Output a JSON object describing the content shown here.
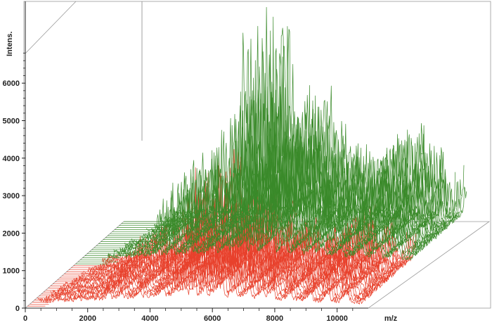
{
  "chart_data": {
    "type": "line",
    "chart_style": "3d-stacked-spectra",
    "xlabel": "m/z",
    "ylabel": "Intens.",
    "xlim": [
      0,
      11000
    ],
    "ylim": [
      0,
      6900
    ],
    "x_ticks": [
      0,
      2000,
      4000,
      6000,
      8000,
      10000
    ],
    "y_ticks": [
      0,
      1000,
      2000,
      3000,
      4000,
      5000,
      6000
    ],
    "grid": false,
    "legend": "none",
    "groups": [
      {
        "color": "#e8412c",
        "spectra": 22
      },
      {
        "color": "#3a8a2a",
        "spectra": 22
      }
    ],
    "peaks": [
      {
        "mz": 2650,
        "height": 1500
      },
      {
        "mz": 3050,
        "height": 1900
      },
      {
        "mz": 3650,
        "height": 1400
      },
      {
        "mz": 4380,
        "height": 3600
      },
      {
        "mz": 4800,
        "height": 2000
      },
      {
        "mz": 5080,
        "height": 4300
      },
      {
        "mz": 5380,
        "height": 6150
      },
      {
        "mz": 5700,
        "height": 2500
      },
      {
        "mz": 6050,
        "height": 3900
      },
      {
        "mz": 6280,
        "height": 3000
      },
      {
        "mz": 6650,
        "height": 3400
      },
      {
        "mz": 7120,
        "height": 2800
      },
      {
        "mz": 7550,
        "height": 2300
      },
      {
        "mz": 7880,
        "height": 2200
      },
      {
        "mz": 8450,
        "height": 1800
      },
      {
        "mz": 9100,
        "height": 2300
      },
      {
        "mz": 9650,
        "height": 2800
      },
      {
        "mz": 10250,
        "height": 2200
      },
      {
        "mz": 11000,
        "height": 1700
      }
    ]
  }
}
